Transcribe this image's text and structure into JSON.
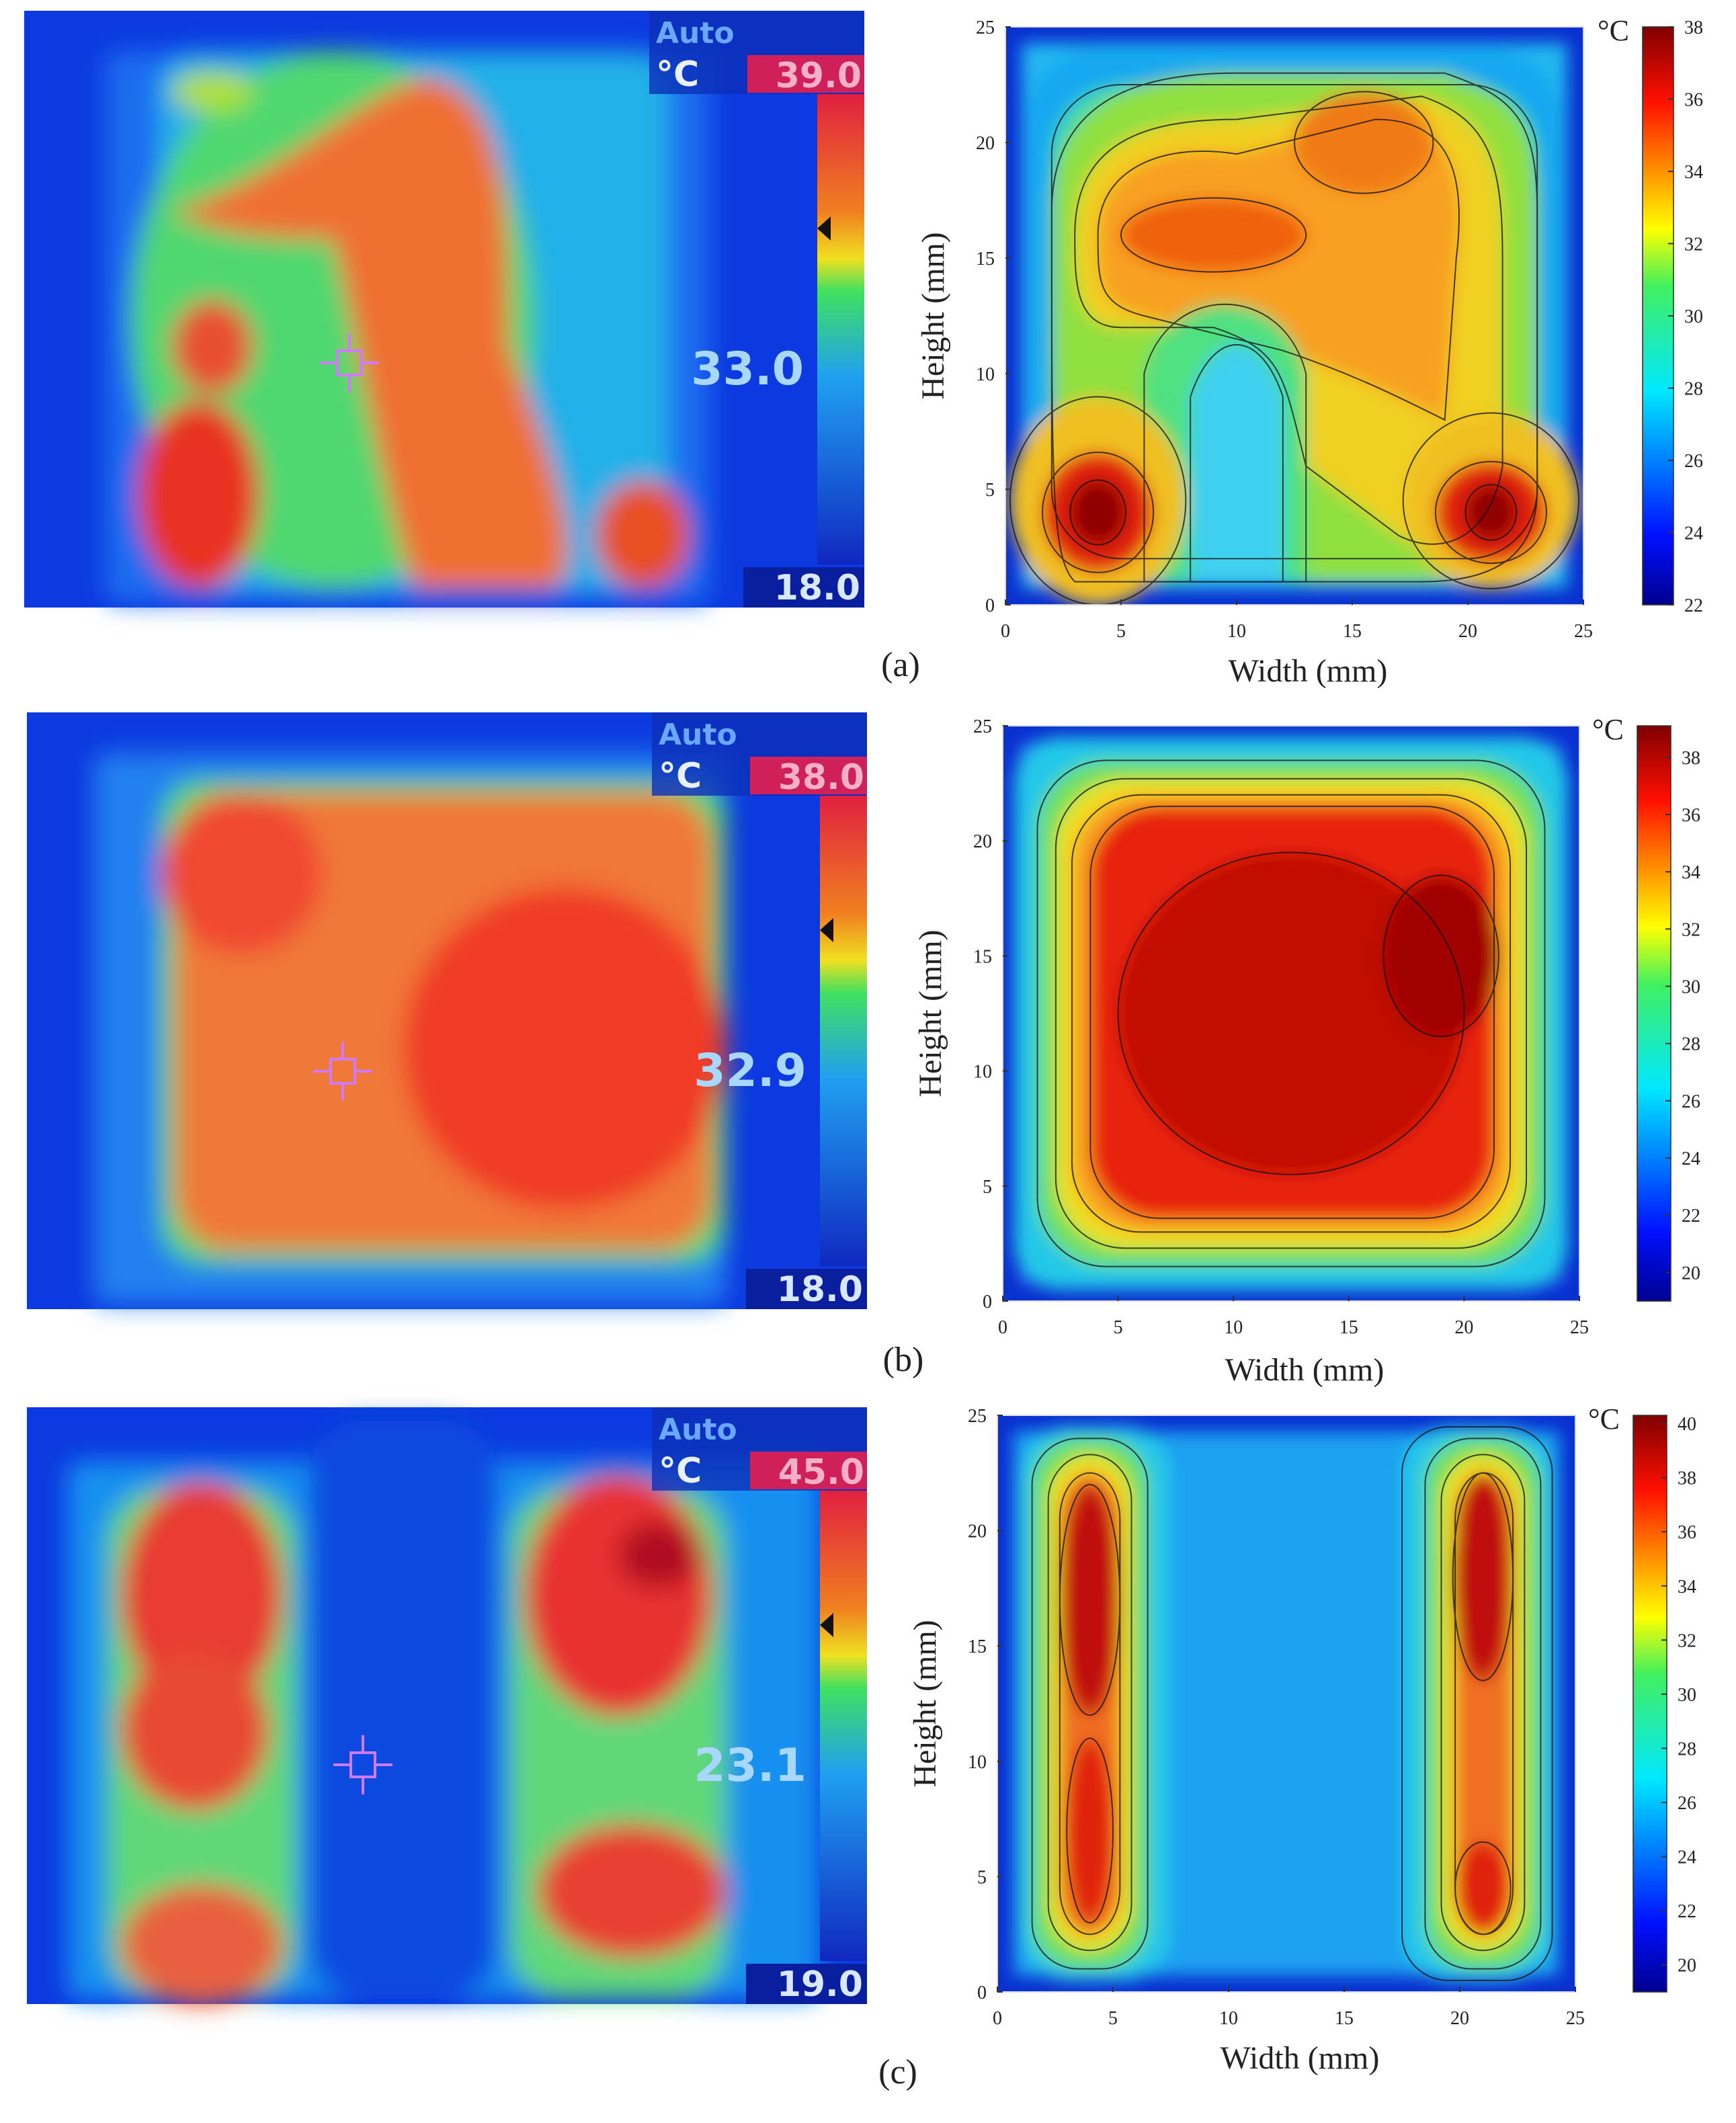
{
  "chart_data": [
    {
      "type": "contour",
      "xlabel": "Width (mm)",
      "ylabel": "Height (mm)",
      "xlim": [
        0,
        25
      ],
      "xticks": [
        0,
        5,
        10,
        15,
        20,
        25
      ],
      "ylim": [
        0,
        25
      ],
      "yticks": [
        0,
        5,
        10,
        15,
        20,
        25
      ],
      "colorbar_label": "°C",
      "clim": [
        22,
        38
      ],
      "cticks": [
        22,
        24,
        26,
        28,
        30,
        32,
        34,
        36,
        38
      ],
      "panel_label": "(a)"
    },
    {
      "type": "contour",
      "xlabel": "Width (mm)",
      "ylabel": "Height (mm)",
      "xlim": [
        0,
        25
      ],
      "xticks": [
        0,
        5,
        10,
        15,
        20,
        25
      ],
      "ylim": [
        0,
        25
      ],
      "yticks": [
        0,
        5,
        10,
        15,
        20,
        25
      ],
      "colorbar_label": "°C",
      "clim": [
        19,
        39.1
      ],
      "cticks": [
        20,
        22,
        24,
        26,
        28,
        30,
        32,
        34,
        36,
        38
      ],
      "panel_label": "(b)"
    },
    {
      "type": "contour",
      "xlabel": "Width (mm)",
      "ylabel": "Height (mm)",
      "xlim": [
        0,
        25
      ],
      "xticks": [
        0,
        5,
        10,
        15,
        20,
        25
      ],
      "ylim": [
        0,
        25
      ],
      "yticks": [
        0,
        5,
        10,
        15,
        20,
        25
      ],
      "colorbar_label": "°C",
      "clim": [
        19,
        40.3
      ],
      "cticks": [
        20,
        22,
        24,
        26,
        28,
        30,
        32,
        34,
        36,
        38,
        40
      ],
      "panel_label": "(c)"
    }
  ],
  "thermal_images": [
    {
      "mode": "Auto",
      "unit": "°C",
      "max": "39.0",
      "spot": "33.0",
      "min": "18.0"
    },
    {
      "mode": "Auto",
      "unit": "°C",
      "max": "38.0",
      "spot": "32.9",
      "min": "18.0"
    },
    {
      "mode": "Auto",
      "unit": "°C",
      "max": "45.0",
      "spot": "23.1",
      "min": "19.0"
    }
  ]
}
